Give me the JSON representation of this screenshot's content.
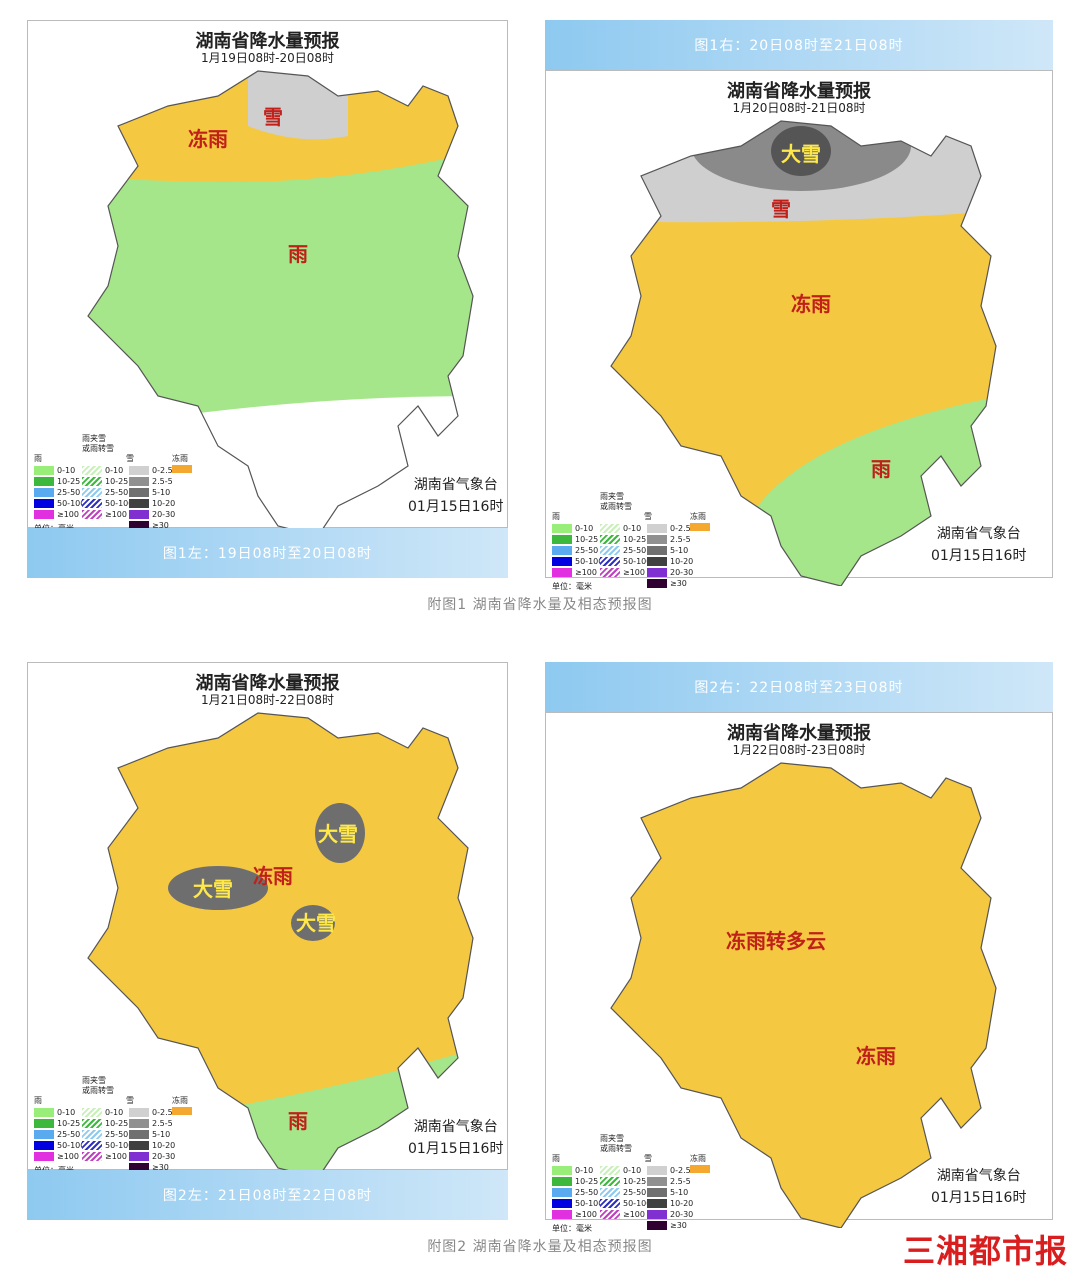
{
  "common": {
    "title": "湖南省降水量预报",
    "org": "湖南省气象台",
    "issued": "01月15日16时"
  },
  "colors": {
    "rain": "#a5e68a",
    "freezing_rain": "#f5c842",
    "snow": "#cfcfcf",
    "heavy_snow": "#6e6e6e",
    "banner": "#8ec9f0",
    "logo": "#d81e1e"
  },
  "legend": {
    "rain_title": "雨",
    "mix_title": "雨夹雪",
    "mix_title2": "或雨转雪",
    "snow_title": "雪",
    "fr_title": "冻雨",
    "unit": "单位：毫米",
    "rain": [
      {
        "label": "0-10",
        "color": "#98ee78"
      },
      {
        "label": "10-25",
        "color": "#3cb83c"
      },
      {
        "label": "25-50",
        "color": "#5aaaf0"
      },
      {
        "label": "50-100",
        "color": "#0000e0"
      },
      {
        "label": "≥100",
        "color": "#e030e0"
      }
    ],
    "mix": [
      {
        "label": "0-10",
        "color": "#c8f0b8"
      },
      {
        "label": "10-25",
        "color": "#3cb83c"
      },
      {
        "label": "25-50",
        "color": "#8ccaf0"
      },
      {
        "label": "50-100",
        "color": "#3030c0"
      },
      {
        "label": "≥100",
        "color": "#c040c0"
      }
    ],
    "snow": [
      {
        "label": "0-2.5",
        "color": "#d0d0d0"
      },
      {
        "label": "2.5-5",
        "color": "#909090"
      },
      {
        "label": "5-10",
        "color": "#707070"
      },
      {
        "label": "10-20",
        "color": "#404040"
      },
      {
        "label": "20-30",
        "color": "#8030d0"
      },
      {
        "label": "≥30",
        "color": "#300030"
      }
    ],
    "fr_color": "#f5a830"
  },
  "panels": [
    {
      "banner": "图1左：19日08时至20日08时",
      "period": "1月19日08时-20日08时",
      "labels": [
        "冻雨",
        "雪",
        "雨"
      ]
    },
    {
      "banner": "图1右：20日08时至21日08时",
      "period": "1月20日08时-21日08时",
      "labels": [
        "大雪",
        "雪",
        "冻雨",
        "雨"
      ]
    },
    {
      "banner": "图2左：21日08时至22日08时",
      "period": "1月21日08时-22日08时",
      "labels": [
        "大雪",
        "大雪",
        "冻雨",
        "大雪",
        "雨"
      ]
    },
    {
      "banner": "图2右：22日08时至23日08时",
      "period": "1月22日08时-23日08时",
      "labels": [
        "冻雨转多云",
        "冻雨"
      ]
    }
  ],
  "captions": [
    "附图1 湖南省降水量及相态预报图",
    "附图2 湖南省降水量及相态预报图"
  ],
  "logo": "三湘都市报"
}
